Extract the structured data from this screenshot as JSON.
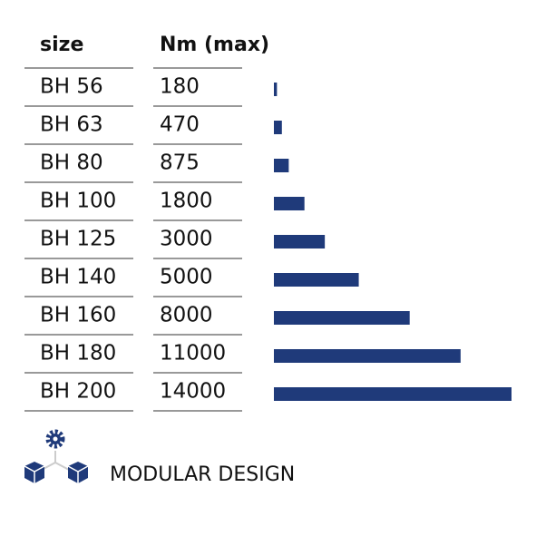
{
  "chart_data": {
    "type": "bar",
    "orientation": "horizontal",
    "columns": [
      "size",
      "Nm (max)"
    ],
    "categories": [
      "BH 56",
      "BH 63",
      "BH 80",
      "BH 100",
      "BH 125",
      "BH 140",
      "BH 160",
      "BH 180",
      "BH 200"
    ],
    "values": [
      180,
      470,
      875,
      1800,
      3000,
      5000,
      8000,
      11000,
      14000
    ],
    "color": "#1f3a7a",
    "caption": "MODULAR DESIGN"
  }
}
